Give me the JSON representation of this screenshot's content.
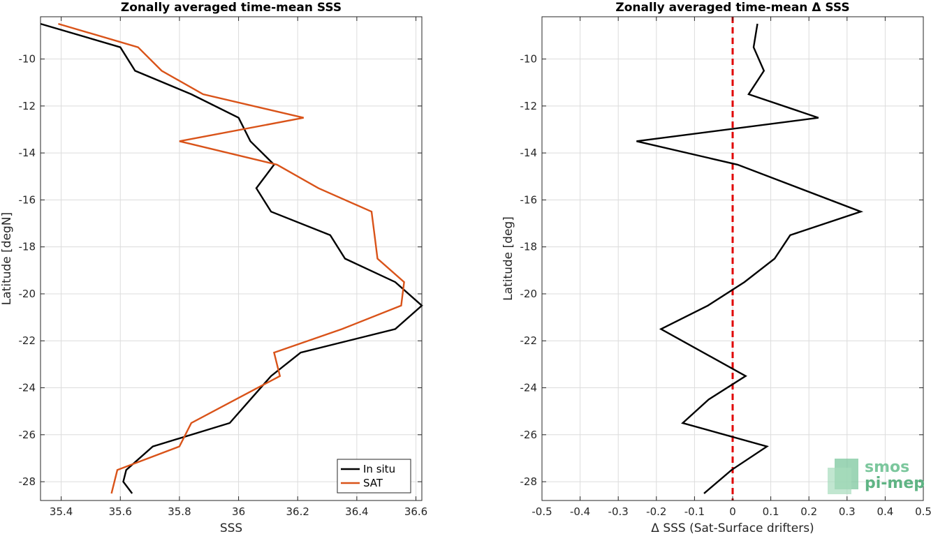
{
  "chart_data": [
    {
      "type": "line",
      "title": "Zonally averaged time-mean SSS",
      "xlabel": "SSS",
      "ylabel": "Latitude [degN]",
      "xlim": [
        35.33,
        36.62
      ],
      "ylim": [
        -28.8,
        -8.2
      ],
      "xticks": [
        35.4,
        35.6,
        35.8,
        36,
        36.2,
        36.4,
        36.6
      ],
      "xtick_labels": [
        "35.4",
        "35.6",
        "35.8",
        "36",
        "36.2",
        "36.4",
        "36.6"
      ],
      "yticks": [
        -28,
        -26,
        -24,
        -22,
        -20,
        -18,
        -16,
        -14,
        -12,
        -10
      ],
      "ytick_labels": [
        "-28",
        "-26",
        "-24",
        "-22",
        "-20",
        "-18",
        "-16",
        "-14",
        "-12",
        "-10"
      ],
      "grid": true,
      "legend_position": "bottom-right",
      "series": [
        {
          "name": "In situ",
          "color": "#000000",
          "x": [
            35.33,
            35.6,
            35.65,
            35.84,
            36.0,
            36.04,
            36.12,
            36.06,
            36.11,
            36.31,
            36.36,
            36.53,
            36.62,
            36.53,
            36.21,
            36.11,
            36.04,
            35.97,
            35.71,
            35.62,
            35.61,
            35.64
          ],
          "y": [
            -8.5,
            -9.5,
            -10.5,
            -11.5,
            -12.5,
            -13.5,
            -14.5,
            -15.5,
            -16.5,
            -17.5,
            -18.5,
            -19.5,
            -20.5,
            -21.5,
            -22.5,
            -23.5,
            -24.5,
            -25.5,
            -26.5,
            -27.5,
            -28.0,
            -28.5
          ]
        },
        {
          "name": "SAT",
          "color": "#d95319",
          "x": [
            35.39,
            35.66,
            35.74,
            35.88,
            36.22,
            35.8,
            36.13,
            36.27,
            36.45,
            36.46,
            36.47,
            36.56,
            36.55,
            36.35,
            36.12,
            36.14,
            35.99,
            35.84,
            35.8,
            35.59,
            35.57
          ],
          "y": [
            -8.5,
            -9.5,
            -10.5,
            -11.5,
            -12.5,
            -13.5,
            -14.5,
            -15.5,
            -16.5,
            -17.5,
            -18.5,
            -19.5,
            -20.5,
            -21.5,
            -22.5,
            -23.5,
            -24.5,
            -25.5,
            -26.5,
            -27.5,
            -28.5
          ]
        }
      ]
    },
    {
      "type": "line",
      "title": "Zonally averaged time-mean Δ SSS",
      "xlabel": "Δ SSS (Sat-Surface drifters)",
      "ylabel": "Latitude [deg]",
      "xlim": [
        -0.5,
        0.5
      ],
      "ylim": [
        -28.8,
        -8.2
      ],
      "xticks": [
        -0.5,
        -0.4,
        -0.3,
        -0.2,
        -0.1,
        0,
        0.1,
        0.2,
        0.3,
        0.4,
        0.5
      ],
      "xtick_labels": [
        "-0.5",
        "-0.4",
        "-0.3",
        "-0.2",
        "-0.1",
        "0",
        "0.1",
        "0.2",
        "0.3",
        "0.4",
        "0.5"
      ],
      "yticks": [
        -28,
        -26,
        -24,
        -22,
        -20,
        -18,
        -16,
        -14,
        -12,
        -10
      ],
      "ytick_labels": [
        "-28",
        "-26",
        "-24",
        "-22",
        "-20",
        "-18",
        "-16",
        "-14",
        "-12",
        "-10"
      ],
      "grid": true,
      "reference_line": {
        "x": 0,
        "color": "#e00000",
        "style": "dashed"
      },
      "series": [
        {
          "color": "#000000",
          "x": [
            0.065,
            0.055,
            0.082,
            0.042,
            0.225,
            -0.252,
            0.013,
            0.336,
            0.151,
            0.11,
            0.031,
            -0.065,
            -0.188,
            0.034,
            -0.063,
            -0.131,
            0.09,
            -0.003,
            -0.075
          ],
          "y": [
            -8.5,
            -9.5,
            -10.5,
            -11.5,
            -12.5,
            -13.5,
            -14.5,
            -16.5,
            -17.5,
            -18.5,
            -19.5,
            -20.5,
            -21.5,
            -23.5,
            -24.5,
            -25.5,
            -26.5,
            -27.5,
            -28.5
          ]
        }
      ]
    }
  ],
  "logo": {
    "line1": "smos",
    "line2": "pi-mep"
  }
}
